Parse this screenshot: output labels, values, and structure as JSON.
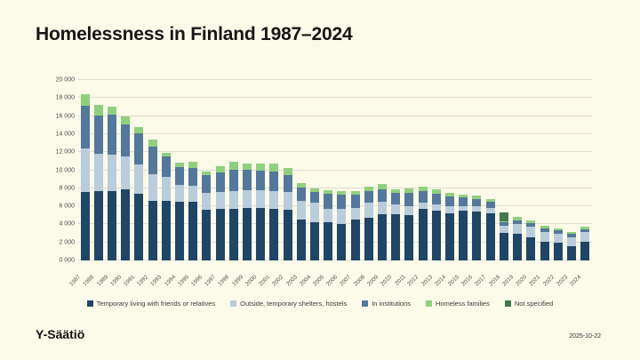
{
  "page": {
    "title": "Homelessness in Finland 1987–2024",
    "footer_left": "Y-Säätiö",
    "footer_right": "2025-10-22",
    "colors": {
      "background": "#FCFAE9",
      "gridline": "#E0DCD1",
      "axis_text": "#4d4d4d"
    }
  },
  "chart_data": {
    "type": "bar",
    "stacked": true,
    "title": "Homelessness in Finland 1987–2024",
    "xlabel": "",
    "ylabel": "",
    "ylim": [
      0,
      20000
    ],
    "y_tick_step": 2000,
    "y_tick_labels": [
      "0 000",
      "2 000",
      "4 000",
      "6 000",
      "8 000",
      "10 000",
      "12 000",
      "14 000",
      "16 000",
      "18 000",
      "20 000"
    ],
    "grid": true,
    "legend_position": "bottom",
    "categories": [
      1987,
      1988,
      1989,
      1990,
      1991,
      1992,
      1993,
      1994,
      1995,
      1996,
      1997,
      1998,
      1999,
      2000,
      2001,
      2002,
      2003,
      2004,
      2005,
      2006,
      2007,
      2008,
      2009,
      2010,
      2011,
      2012,
      2013,
      2014,
      2015,
      2016,
      2017,
      2018,
      2019,
      2020,
      2021,
      2022,
      2023,
      2024
    ],
    "series": [
      {
        "name": "Temporary living with friends or relatives",
        "color": "#1F4666",
        "values": [
          7600,
          7650,
          7700,
          7900,
          7400,
          6650,
          6600,
          6500,
          6500,
          5650,
          5700,
          5750,
          5800,
          5850,
          5750,
          5600,
          4500,
          4200,
          4200,
          4050,
          4500,
          4700,
          5100,
          5100,
          5050,
          5700,
          5500,
          5250,
          5500,
          5450,
          5250,
          3100,
          2950,
          2600,
          2050,
          2000,
          1600,
          2050
        ]
      },
      {
        "name": "Outside, temporary shelters, hostels",
        "color": "#B9CDDD",
        "values": [
          4800,
          4200,
          4000,
          3600,
          3200,
          2950,
          2700,
          1900,
          1800,
          1850,
          1850,
          1900,
          2000,
          1900,
          1900,
          1950,
          2150,
          2250,
          1550,
          1650,
          1300,
          1700,
          1400,
          1150,
          1000,
          700,
          750,
          750,
          550,
          600,
          550,
          700,
          1050,
          1100,
          1100,
          1000,
          1000,
          1100
        ]
      },
      {
        "name": "In institutions",
        "color": "#53789B",
        "values": [
          4700,
          4250,
          4500,
          3600,
          3500,
          3050,
          2200,
          1900,
          1950,
          1950,
          2250,
          2450,
          2250,
          2200,
          2200,
          1950,
          1450,
          1150,
          1600,
          1550,
          1500,
          1300,
          1400,
          1200,
          1400,
          1250,
          1150,
          1050,
          900,
          800,
          750,
          400,
          450,
          400,
          400,
          400,
          400,
          350
        ]
      },
      {
        "name": "Homeless families",
        "color": "#8FD07E",
        "values": [
          1300,
          1100,
          800,
          900,
          700,
          750,
          400,
          500,
          650,
          400,
          600,
          850,
          700,
          800,
          900,
          800,
          450,
          350,
          400,
          450,
          400,
          500,
          550,
          450,
          500,
          550,
          450,
          400,
          300,
          300,
          250,
          100,
          350,
          350,
          250,
          200,
          150,
          200
        ]
      },
      {
        "name": "Not specified",
        "color": "#41794B",
        "values": [
          0,
          0,
          0,
          0,
          0,
          0,
          0,
          0,
          0,
          0,
          0,
          0,
          0,
          0,
          0,
          0,
          0,
          0,
          0,
          0,
          0,
          0,
          0,
          0,
          0,
          0,
          0,
          0,
          0,
          0,
          0,
          1000,
          0,
          0,
          0,
          0,
          0,
          0
        ]
      }
    ]
  }
}
